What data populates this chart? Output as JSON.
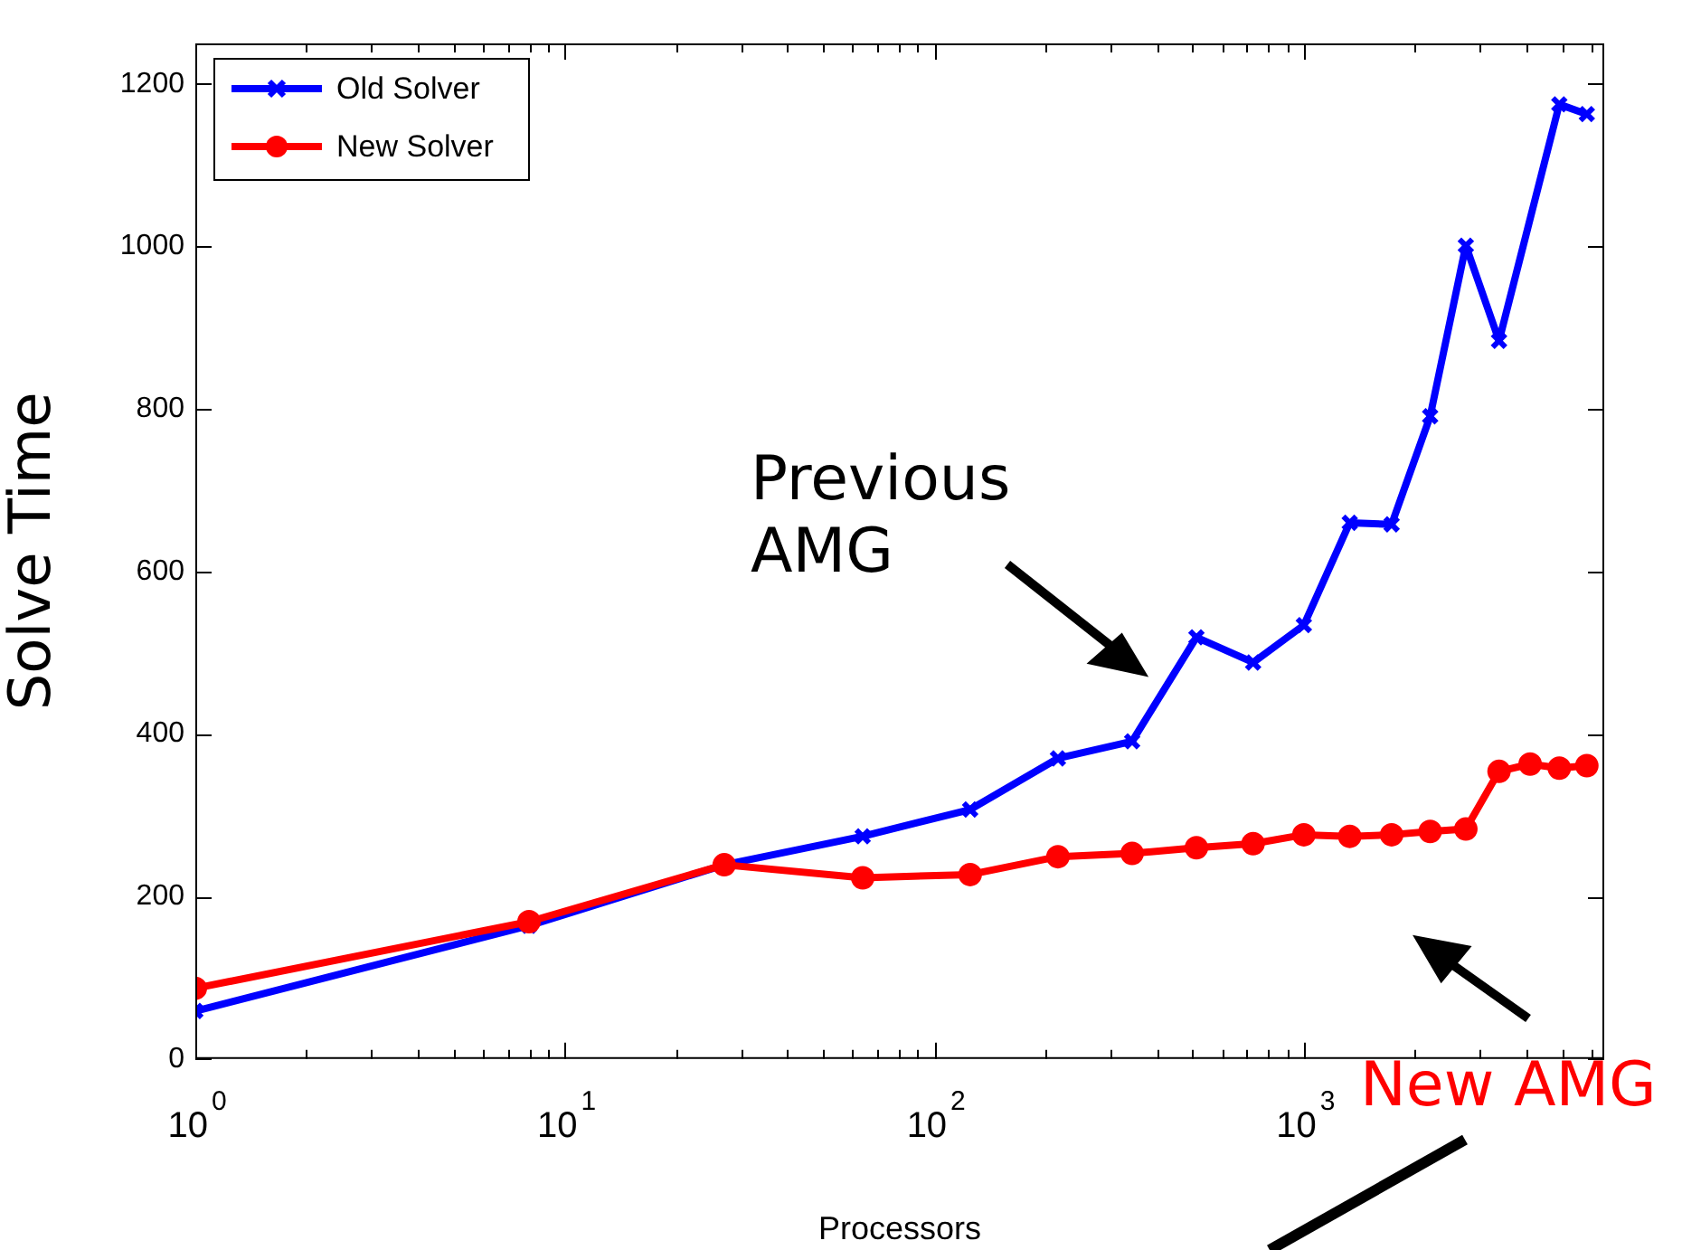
{
  "chart_data": {
    "type": "line",
    "xlabel": "Processors",
    "ylabel": "Solve Time",
    "log": "x",
    "xlim": [
      1,
      6500
    ],
    "xticks": [
      {
        "value": 1,
        "label": "10$^{0}$"
      },
      {
        "value": 2,
        "label": null
      },
      {
        "value": 3,
        "label": null
      },
      {
        "value": 4,
        "label": null
      },
      {
        "value": 5,
        "label": null
      },
      {
        "value": 6,
        "label": null
      },
      {
        "value": 7,
        "label": null
      },
      {
        "value": 8,
        "label": null
      },
      {
        "value": 9,
        "label": null
      },
      {
        "value": 10,
        "label": "10$^{1}$"
      },
      {
        "value": 20,
        "label": null
      },
      {
        "value": 30,
        "label": null
      },
      {
        "value": 40,
        "label": null
      },
      {
        "value": 50,
        "label": null
      },
      {
        "value": 60,
        "label": null
      },
      {
        "value": 70,
        "label": null
      },
      {
        "value": 80,
        "label": null
      },
      {
        "value": 90,
        "label": null
      },
      {
        "value": 100,
        "label": "10$^{2}$"
      },
      {
        "value": 200,
        "label": null
      },
      {
        "value": 300,
        "label": null
      },
      {
        "value": 400,
        "label": null
      },
      {
        "value": 500,
        "label": null
      },
      {
        "value": 600,
        "label": null
      },
      {
        "value": 700,
        "label": null
      },
      {
        "value": 800,
        "label": null
      },
      {
        "value": 900,
        "label": null
      },
      {
        "value": 1000,
        "label": "10$^{3}$"
      },
      {
        "value": 2000,
        "label": null
      },
      {
        "value": 3000,
        "label": null
      },
      {
        "value": 4000,
        "label": null
      },
      {
        "value": 5000,
        "label": null
      },
      {
        "value": 6000,
        "label": null
      }
    ],
    "ylim": [
      0,
      1250
    ],
    "yticks": [
      0,
      200,
      400,
      600,
      800,
      1000,
      1200
    ],
    "grid": false,
    "legend": "top left",
    "line_style": "solid",
    "series": [
      {
        "name": "Old Solver",
        "color": "#0000ff",
        "marker": "cross",
        "x": [
          1,
          8,
          27,
          64,
          125,
          216,
          343,
          512,
          729,
          1000,
          1331,
          1728,
          2197,
          2744,
          3375,
          4913,
          5832
        ],
        "values": [
          59,
          164,
          239,
          274,
          307,
          370,
          391,
          519,
          488,
          534,
          660,
          658,
          791,
          1001,
          884,
          1175,
          1163
        ]
      },
      {
        "name": "New Solver",
        "color": "#ff0000",
        "marker": "circle",
        "x": [
          1,
          8,
          27,
          64,
          125,
          216,
          343,
          512,
          729,
          1000,
          1331,
          1728,
          2197,
          2744,
          3375,
          4096,
          4913,
          5832
        ],
        "values": [
          87,
          169,
          239,
          223,
          227,
          249,
          253,
          260,
          265,
          276,
          274,
          276,
          280,
          283,
          354,
          363,
          358,
          361
        ]
      }
    ],
    "annotations": [
      "Previous\nAMG",
      "New AMG"
    ]
  }
}
